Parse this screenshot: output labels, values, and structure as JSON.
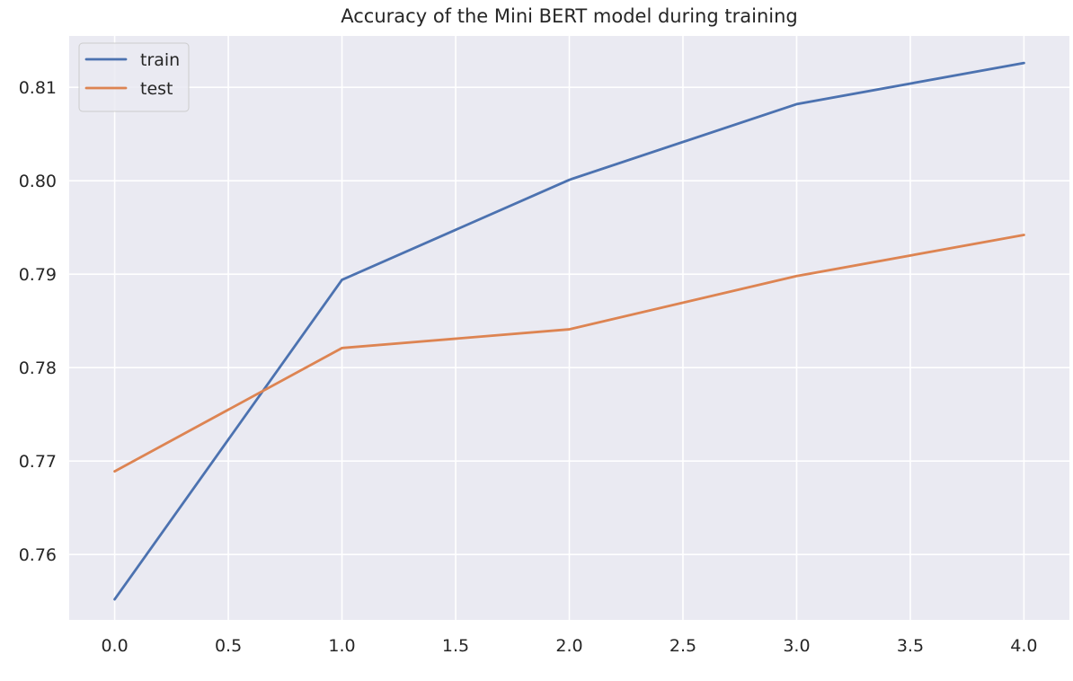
{
  "chart_data": {
    "type": "line",
    "title": "Accuracy of the Mini BERT model during training",
    "xlabel": "",
    "ylabel": "",
    "x": [
      0,
      1,
      2,
      3,
      4
    ],
    "xlim": [
      -0.2,
      4.2
    ],
    "ylim": [
      0.753,
      0.8155
    ],
    "xticks": [
      0.0,
      0.5,
      1.0,
      1.5,
      2.0,
      2.5,
      3.0,
      3.5,
      4.0
    ],
    "xtick_labels": [
      "0.0",
      "0.5",
      "1.0",
      "1.5",
      "2.0",
      "2.5",
      "3.0",
      "3.5",
      "4.0"
    ],
    "yticks": [
      0.76,
      0.77,
      0.78,
      0.79,
      0.8,
      0.81
    ],
    "ytick_labels": [
      "0.76",
      "0.77",
      "0.78",
      "0.79",
      "0.80",
      "0.81"
    ],
    "grid": true,
    "legend_position": "top-left",
    "background_color": "#eaeaf2",
    "series": [
      {
        "name": "train",
        "color": "#4c72b0",
        "values": [
          0.7552,
          0.7894,
          0.8001,
          0.8082,
          0.8126
        ]
      },
      {
        "name": "test",
        "color": "#dd8452",
        "values": [
          0.7689,
          0.7821,
          0.7841,
          0.7898,
          0.7942
        ]
      }
    ]
  }
}
